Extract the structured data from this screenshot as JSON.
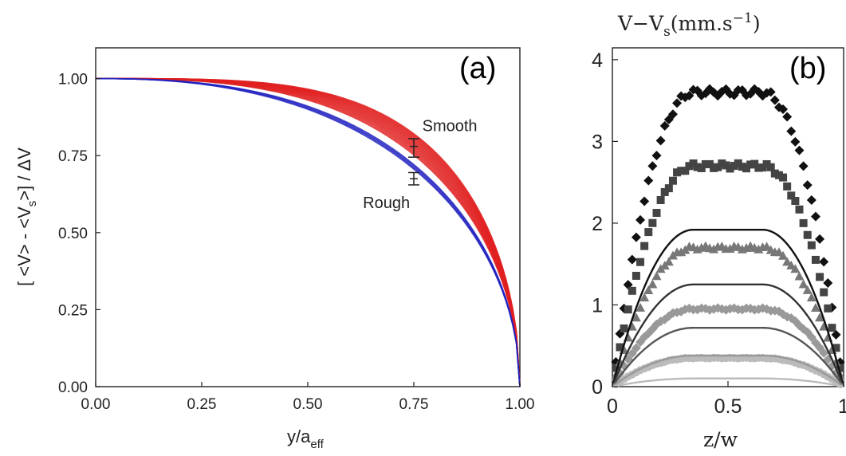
{
  "chart_data": [
    {
      "panel_label": "(a)",
      "type": "line",
      "xlabel": "y/a",
      "xlabel_sub": "eff",
      "ylabel_parts": [
        "[ <V> - <V",
        "s",
        ">]  / ΔV"
      ],
      "xlim": [
        0,
        1
      ],
      "ylim": [
        0,
        1.1
      ],
      "xticks": [
        "0.00",
        "0.25",
        "0.50",
        "0.75",
        "1.00"
      ],
      "yticks": [
        "0.00",
        "0.25",
        "0.50",
        "0.75",
        "1.00"
      ],
      "grid": false,
      "annotations": [
        {
          "text": "Smooth",
          "x": 0.77,
          "y": 0.83
        },
        {
          "text": "Rough",
          "x": 0.63,
          "y": 0.58
        }
      ],
      "series": [
        {
          "group": "Smooth",
          "color": "#e02020",
          "count": 16,
          "exponent_range": [
            2.9,
            3.9
          ],
          "x": [
            0,
            0.1,
            0.2,
            0.3,
            0.4,
            0.5,
            0.6,
            0.7,
            0.75,
            0.8,
            0.85,
            0.9,
            0.95,
            1.0
          ],
          "y": [
            1.0,
            1.0,
            0.995,
            0.98,
            0.96,
            0.93,
            0.89,
            0.83,
            0.78,
            0.72,
            0.64,
            0.52,
            0.33,
            0.0
          ]
        },
        {
          "group": "Rough",
          "color": "#2020c0",
          "count": 4,
          "exponent_range": [
            2.4,
            2.55
          ],
          "x": [
            0,
            0.1,
            0.2,
            0.3,
            0.4,
            0.5,
            0.6,
            0.7,
            0.75,
            0.8,
            0.85,
            0.9,
            0.95,
            1.0
          ],
          "y": [
            1.0,
            0.995,
            0.98,
            0.955,
            0.915,
            0.86,
            0.79,
            0.72,
            0.67,
            0.61,
            0.53,
            0.41,
            0.24,
            0.0
          ]
        }
      ],
      "error_bars": [
        {
          "x": 0.75,
          "y": 0.78,
          "low": 0.745,
          "high": 0.805
        },
        {
          "x": 0.75,
          "y": 0.675,
          "low": 0.655,
          "high": 0.695
        }
      ]
    },
    {
      "panel_label": "(b)",
      "type": "scatter",
      "ylabel_parts": [
        "V−V",
        "s",
        "(mm.s",
        "−1",
        ")"
      ],
      "xlabel": "z/w",
      "xlim": [
        0,
        1
      ],
      "ylim": [
        0,
        4
      ],
      "xticks": [
        "0",
        "0.5",
        "1"
      ],
      "yticks": [
        "0",
        "1",
        "2",
        "3",
        "4"
      ],
      "grid": false,
      "profile_shape": {
        "edge_width": 0.35
      },
      "series": [
        {
          "marker": "diamond",
          "color": "#111111",
          "plateau": 3.6
        },
        {
          "marker": "square",
          "color": "#444444",
          "plateau": 2.7
        },
        {
          "marker": "triangle",
          "color": "#777777",
          "plateau": 1.7
        },
        {
          "marker": "diamond",
          "color": "#999999",
          "plateau": 0.95
        },
        {
          "marker": "circle",
          "color": "#bbbbbb",
          "plateau": 0.35
        }
      ],
      "model_lines": [
        {
          "color": "#111111",
          "plateau": 1.92
        },
        {
          "color": "#333333",
          "plateau": 1.25
        },
        {
          "color": "#555555",
          "plateau": 0.72
        },
        {
          "color": "#999999",
          "plateau": 0.38
        },
        {
          "color": "#bbbbbb",
          "plateau": 0.1
        }
      ]
    }
  ]
}
